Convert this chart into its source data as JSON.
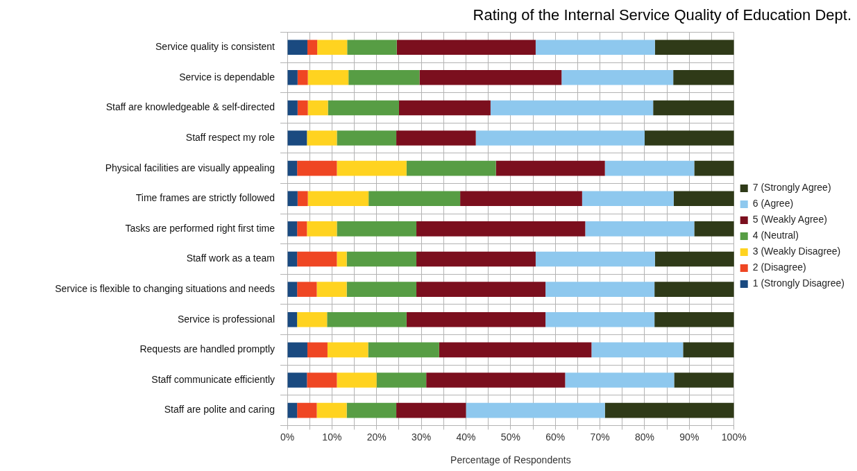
{
  "chart_data": {
    "type": "bar",
    "orientation": "horizontal",
    "stacked": true,
    "title": "Rating of the Internal Service Quality of Education Dept.",
    "xlabel": "Percentage of Respondents",
    "categories": [
      "Service quality is consistent",
      "Service is dependable",
      "Staff are knowledgeable & self-directed",
      "Staff respect my role",
      "Physical facilities are visually appealing",
      "Time frames are strictly followed",
      "Tasks are performed right first time",
      "Staff work as a team",
      "Service is flexible to changing situations and needs",
      "Service is professional",
      "Requests are handled promptly",
      "Staff communicate efficiently",
      "Staff are polite and caring"
    ],
    "series": [
      {
        "name": "1 (Strongly Disagree)",
        "color": "#1a4a80",
        "values": [
          4.5,
          2.3,
          2.3,
          4.4,
          2.2,
          2.3,
          2.2,
          2.2,
          2.2,
          2.2,
          4.5,
          4.4,
          2.2
        ]
      },
      {
        "name": "2 (Disagree)",
        "color": "#ef4623",
        "values": [
          2.2,
          2.3,
          2.3,
          0,
          8.9,
          2.3,
          2.2,
          8.9,
          4.4,
          0,
          4.5,
          6.7,
          4.4
        ]
      },
      {
        "name": "3 (Weakly Disagree)",
        "color": "#ffd320",
        "values": [
          6.7,
          9.1,
          4.5,
          6.7,
          15.6,
          13.6,
          6.7,
          2.2,
          6.7,
          6.7,
          9.1,
          8.9,
          6.7
        ]
      },
      {
        "name": "4 (Neutral)",
        "color": "#579d44",
        "values": [
          11.1,
          15.9,
          15.9,
          13.3,
          20.0,
          20.5,
          17.8,
          15.6,
          15.6,
          17.8,
          15.9,
          11.1,
          11.1
        ]
      },
      {
        "name": "5 (Weakly Agree)",
        "color": "#7b0f1e",
        "values": [
          31.1,
          31.8,
          20.5,
          17.8,
          24.4,
          27.3,
          37.8,
          26.7,
          28.9,
          31.1,
          34.1,
          31.1,
          15.6
        ]
      },
      {
        "name": "6 (Agree)",
        "color": "#8ec8ee",
        "values": [
          26.7,
          25.0,
          36.4,
          37.8,
          20.0,
          20.5,
          24.4,
          26.7,
          24.4,
          24.4,
          20.5,
          24.4,
          31.1
        ]
      },
      {
        "name": "7 (Strongly Agree)",
        "color": "#2f3a18",
        "values": [
          17.7,
          13.6,
          18.2,
          20.0,
          8.9,
          13.6,
          8.9,
          17.8,
          17.8,
          17.8,
          11.4,
          13.3,
          28.9
        ]
      }
    ],
    "xlim": [
      0,
      100
    ],
    "xticks": [
      {
        "value": 0,
        "label": "0%"
      },
      {
        "value": 5,
        "label": null
      },
      {
        "value": 10,
        "label": "10%"
      },
      {
        "value": 15,
        "label": null
      },
      {
        "value": 20,
        "label": "20%"
      },
      {
        "value": 25,
        "label": null
      },
      {
        "value": 30,
        "label": "30%"
      },
      {
        "value": 35,
        "label": null
      },
      {
        "value": 40,
        "label": "40%"
      },
      {
        "value": 45,
        "label": null
      },
      {
        "value": 50,
        "label": "50%"
      },
      {
        "value": 55,
        "label": null
      },
      {
        "value": 60,
        "label": "60%"
      },
      {
        "value": 65,
        "label": null
      },
      {
        "value": 70,
        "label": "70%"
      },
      {
        "value": 75,
        "label": null
      },
      {
        "value": 80,
        "label": "80%"
      },
      {
        "value": 85,
        "label": null
      },
      {
        "value": 90,
        "label": "90%"
      },
      {
        "value": 95,
        "label": null
      },
      {
        "value": 100,
        "label": "100%"
      }
    ],
    "grid": true,
    "legend": "right"
  }
}
